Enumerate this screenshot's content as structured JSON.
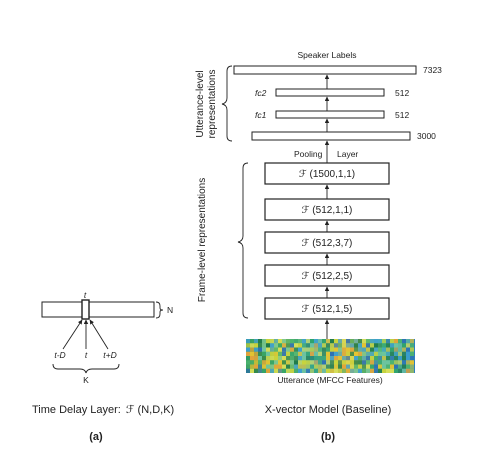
{
  "panel_a": {
    "t_top": "t",
    "n_label": "N",
    "t_minus": "t-D",
    "t_mid": "t",
    "t_plus": "t+D",
    "k_label": "K",
    "caption": "Time Delay Layer:",
    "caption_sym": "ℱ",
    "caption_args": " (N,D,K)",
    "letter": "(a)"
  },
  "panel_b": {
    "speaker_labels": "Speaker Labels",
    "out_dim": "7323",
    "fc2": "fc2",
    "fc2_dim": "512",
    "fc1": "fc1",
    "fc1_dim": "512",
    "pool_dim": "3000",
    "pooling": "Pooling",
    "layer": "Layer",
    "utt_rep_1": "Utterance-level",
    "utt_rep_2": "representations",
    "frame_rep": "Frame-level representations",
    "frame_layers": [
      {
        "sym": "ℱ",
        "args": " (1500,1,1)"
      },
      {
        "sym": "ℱ",
        "args": " (512,1,1)"
      },
      {
        "sym": "ℱ",
        "args": " (512,3,7)"
      },
      {
        "sym": "ℱ",
        "args": " (512,2,5)"
      },
      {
        "sym": "ℱ",
        "args": " (512,1,5)"
      }
    ],
    "input_label": "Utterance (MFCC Features)",
    "caption": "X-vector Model (Baseline)",
    "letter": "(b)"
  }
}
